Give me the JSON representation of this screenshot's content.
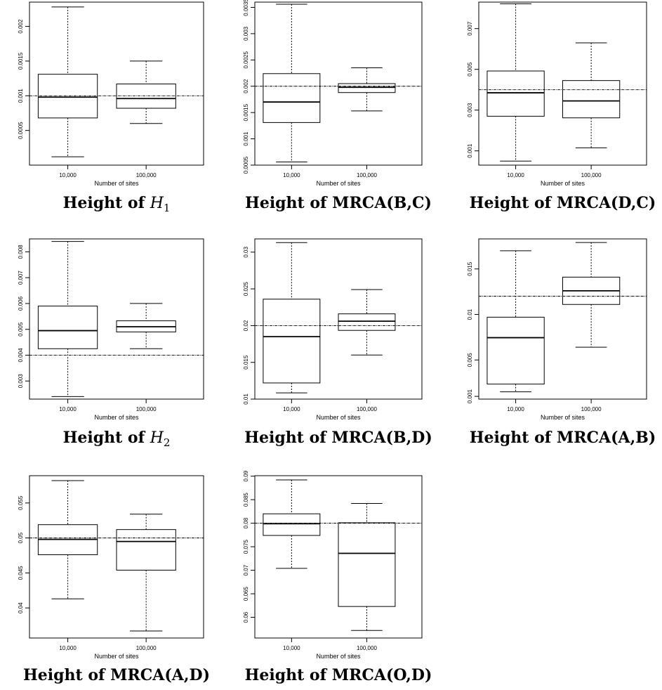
{
  "chart_data": [
    {
      "type": "box",
      "xlabel": "Number of sites",
      "categories": [
        "10,000",
        "100,000"
      ],
      "ylim": [
        0.0,
        0.00235
      ],
      "yticks": [
        0.0005,
        0.001,
        0.0015,
        0.002
      ],
      "ytick_labels": [
        "0.0005",
        "0.001",
        "0.0015",
        "0.002"
      ],
      "reference_line": 0.001,
      "boxes": [
        {
          "whisker_low": 0.00012,
          "q1": 0.00068,
          "median": 0.00098,
          "q3": 0.00131,
          "whisker_high": 0.00228
        },
        {
          "whisker_low": 0.0006,
          "q1": 0.00082,
          "median": 0.00096,
          "q3": 0.00117,
          "whisker_high": 0.0015
        }
      ],
      "caption": {
        "prefix": "Height of ",
        "symbol": "H",
        "subscript": "1",
        "rest": ""
      }
    },
    {
      "type": "box",
      "xlabel": "Number of sites",
      "categories": [
        "10,000",
        "100,000"
      ],
      "ylim": [
        0.0005,
        0.0036
      ],
      "yticks": [
        0.0005,
        0.001,
        0.0015,
        0.002,
        0.0025,
        0.003,
        0.0035
      ],
      "ytick_labels": [
        "0.0005",
        "0.001",
        "0.0015",
        "0.002",
        "0.0025",
        "0.003",
        "0.0035"
      ],
      "reference_line": 0.002,
      "boxes": [
        {
          "whisker_low": 0.00056,
          "q1": 0.00131,
          "median": 0.0017,
          "q3": 0.00224,
          "whisker_high": 0.00356
        },
        {
          "whisker_low": 0.00153,
          "q1": 0.00188,
          "median": 0.00198,
          "q3": 0.00205,
          "whisker_high": 0.00235
        }
      ],
      "caption": {
        "prefix": "Height of ",
        "symbol": "",
        "subscript": "",
        "rest": "MRCA(B,C)"
      }
    },
    {
      "type": "box",
      "xlabel": "Number of sites",
      "categories": [
        "10,000",
        "100,000"
      ],
      "ylim": [
        0.0003,
        0.0083
      ],
      "yticks": [
        0.001,
        0.003,
        0.005,
        0.007
      ],
      "ytick_labels": [
        "0.001",
        "0.003",
        "0.005",
        "0.007"
      ],
      "reference_line": 0.004,
      "boxes": [
        {
          "whisker_low": 0.0005,
          "q1": 0.0027,
          "median": 0.00385,
          "q3": 0.00492,
          "whisker_high": 0.00822
        },
        {
          "whisker_low": 0.00115,
          "q1": 0.00262,
          "median": 0.00345,
          "q3": 0.00445,
          "whisker_high": 0.0063
        }
      ],
      "caption": {
        "prefix": "Height of ",
        "symbol": "",
        "subscript": "",
        "rest": "MRCA(D,C)"
      }
    },
    {
      "type": "box",
      "xlabel": "Number of sites",
      "categories": [
        "10,000",
        "100,000"
      ],
      "ylim": [
        0.0023,
        0.0085
      ],
      "yticks": [
        0.003,
        0.004,
        0.005,
        0.006,
        0.007,
        0.008
      ],
      "ytick_labels": [
        "0.003",
        "0.004",
        "0.005",
        "0.006",
        "0.007",
        "0.008"
      ],
      "reference_line": 0.004,
      "boxes": [
        {
          "whisker_low": 0.0024,
          "q1": 0.00425,
          "median": 0.00495,
          "q3": 0.0059,
          "whisker_high": 0.0084
        },
        {
          "whisker_low": 0.00425,
          "q1": 0.0049,
          "median": 0.0051,
          "q3": 0.00533,
          "whisker_high": 0.006
        }
      ],
      "caption": {
        "prefix": "Height of ",
        "symbol": "H",
        "subscript": "2",
        "rest": ""
      }
    },
    {
      "type": "box",
      "xlabel": "Number of sites",
      "categories": [
        "10,000",
        "100,000"
      ],
      "ylim": [
        0.01,
        0.0318
      ],
      "yticks": [
        0.01,
        0.015,
        0.02,
        0.025,
        0.03
      ],
      "ytick_labels": [
        "0.01",
        "0.015",
        "0.02",
        "0.025",
        "0.03"
      ],
      "reference_line": 0.02,
      "boxes": [
        {
          "whisker_low": 0.01085,
          "q1": 0.0122,
          "median": 0.0185,
          "q3": 0.0236,
          "whisker_high": 0.0313
        },
        {
          "whisker_low": 0.016,
          "q1": 0.01935,
          "median": 0.0206,
          "q3": 0.0216,
          "whisker_high": 0.0249
        }
      ],
      "caption": {
        "prefix": "Height of ",
        "symbol": "",
        "subscript": "",
        "rest": "MRCA(B,D)"
      }
    },
    {
      "type": "box",
      "xlabel": "Number of sites",
      "categories": [
        "10,000",
        "100,000"
      ],
      "ylim": [
        0.0007,
        0.0183
      ],
      "yticks": [
        0.001,
        0.005,
        0.01,
        0.015
      ],
      "ytick_labels": [
        "0.001",
        "0.005",
        "0.01",
        "0.015"
      ],
      "reference_line": 0.012,
      "boxes": [
        {
          "whisker_low": 0.0015,
          "q1": 0.00235,
          "median": 0.00745,
          "q3": 0.0097,
          "whisker_high": 0.017
        },
        {
          "whisker_low": 0.0064,
          "q1": 0.0111,
          "median": 0.0126,
          "q3": 0.0141,
          "whisker_high": 0.0179
        }
      ],
      "caption": {
        "prefix": "Height of ",
        "symbol": "",
        "subscript": "",
        "rest": "MRCA(A,B)"
      }
    },
    {
      "type": "box",
      "xlabel": "Number of sites",
      "categories": [
        "10,000",
        "100,000"
      ],
      "ylim": [
        0.0357,
        0.0589
      ],
      "yticks": [
        0.04,
        0.045,
        0.05,
        0.055
      ],
      "ytick_labels": [
        "0.04",
        "0.045",
        "0.05",
        "0.055"
      ],
      "reference_line": 0.05,
      "boxes": [
        {
          "whisker_low": 0.0413,
          "q1": 0.0476,
          "median": 0.0498,
          "q3": 0.0519,
          "whisker_high": 0.0582
        },
        {
          "whisker_low": 0.0367,
          "q1": 0.0454,
          "median": 0.0495,
          "q3": 0.0512,
          "whisker_high": 0.0534
        }
      ],
      "caption": {
        "prefix": "Height of ",
        "symbol": "",
        "subscript": "",
        "rest": "MRCA(A,D)"
      }
    },
    {
      "type": "box",
      "xlabel": "Number of sites",
      "categories": [
        "10,000",
        "100,000"
      ],
      "ylim": [
        0.0556,
        0.0901
      ],
      "yticks": [
        0.06,
        0.065,
        0.07,
        0.075,
        0.08,
        0.085,
        0.09
      ],
      "ytick_labels": [
        "0.06",
        "0.065",
        "0.07",
        "0.075",
        "0.08",
        "0.085",
        "0.09"
      ],
      "reference_line": 0.08,
      "boxes": [
        {
          "whisker_low": 0.0704,
          "q1": 0.0774,
          "median": 0.0799,
          "q3": 0.082,
          "whisker_high": 0.0892
        },
        {
          "whisker_low": 0.0572,
          "q1": 0.0623,
          "median": 0.0736,
          "q3": 0.0801,
          "whisker_high": 0.0842
        }
      ],
      "caption": {
        "prefix": "Height of ",
        "symbol": "",
        "subscript": "",
        "rest": "MRCA(O,D)"
      }
    }
  ]
}
